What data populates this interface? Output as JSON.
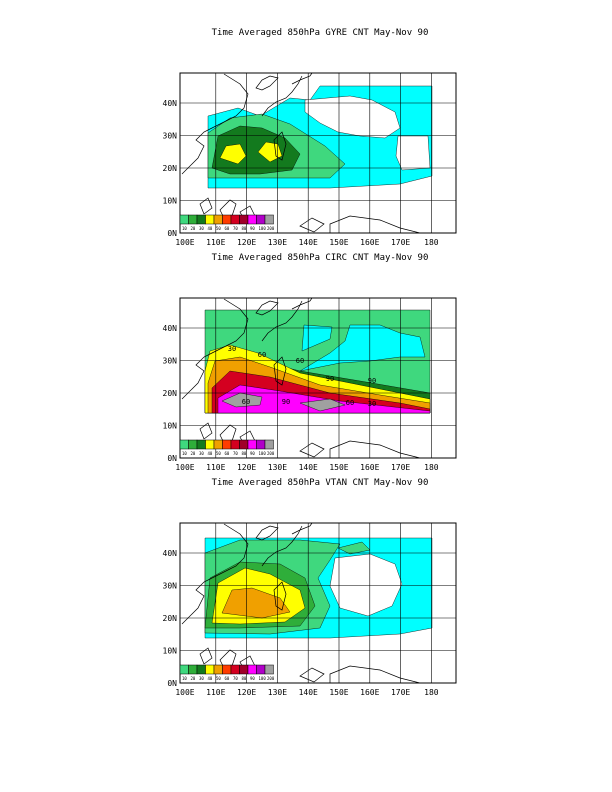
{
  "colors": {
    "level_colors": [
      "#3fd87e",
      "#2fae3a",
      "#137a1e",
      "#ffff00",
      "#f0a000",
      "#ff3c00",
      "#d40020",
      "#a0002a",
      "#ff00ff",
      "#b000c8",
      "#a0a0a0"
    ],
    "cyan": "#00ffff",
    "frame": "#000000"
  },
  "axes": {
    "x_ticks": [
      "100E",
      "110E",
      "120E",
      "130E",
      "140E",
      "150E",
      "160E",
      "170E",
      "180"
    ],
    "y_ticks": [
      "0N",
      "10N",
      "20N",
      "30N",
      "40N"
    ]
  },
  "colorbar": {
    "labels": [
      "10",
      "20",
      "30",
      "40",
      "50",
      "60",
      "70",
      "80",
      "90",
      "100",
      "200"
    ]
  },
  "panels": [
    {
      "title": "Time Averaged 850hPa GYRE CNT May-Nov 90",
      "contour_labels": []
    },
    {
      "title": "Time Averaged 850hPa CIRC CNT May-Nov 90",
      "contour_labels": [
        "30",
        "60",
        "60",
        "90",
        "90",
        "60",
        "90",
        "60",
        "30"
      ]
    },
    {
      "title": "Time Averaged 850hPa VTAN CNT May-Nov 90",
      "contour_labels": []
    }
  ]
}
